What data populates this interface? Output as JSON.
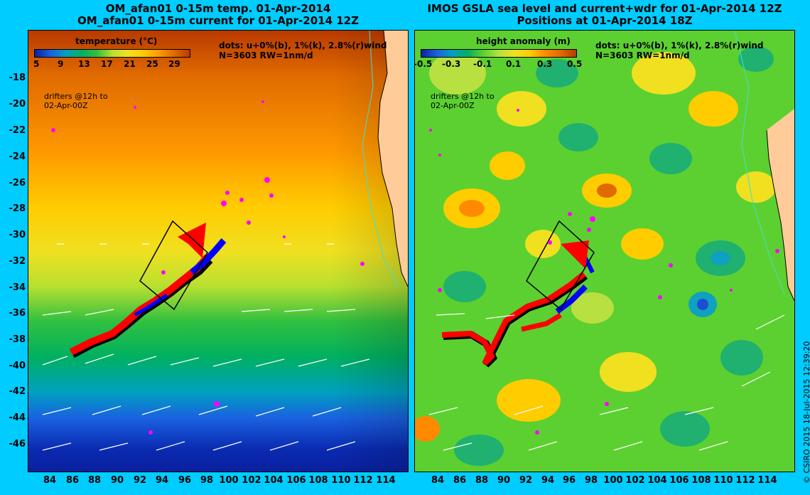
{
  "left_panel": {
    "title_line1": "OM_afan01 0-15m temp. 01-Apr-2014",
    "title_line2": "OM_afan01 0-15m current for 01-Apr-2014 12Z",
    "colorbar_label": "temperature (°C)",
    "colorbar_ticks": [
      "5",
      "9",
      "13",
      "17",
      "21",
      "25",
      "29"
    ],
    "dots_line1": "dots: u+0%(b), 1%(k), 2.8%(r)wind",
    "dots_line2": "N=3603 RW=1nm/d",
    "drifters_line1": "drifters @12h to",
    "drifters_line2": "02-Apr-00Z"
  },
  "right_panel": {
    "title_line1": "IMOS GSLA sea level and current+wdr for 01-Apr-2014 12Z",
    "title_line2": "Positions at 01-Apr-2014 18Z",
    "colorbar_label": "height anomaly  (m)",
    "colorbar_ticks": [
      "-0.5",
      "-0.3",
      "-0.1",
      "0.1",
      "0.3",
      "0.5"
    ],
    "dots_line1": "dots: u+0%(b), 1%(k), 2.8%(r)wind",
    "dots_line2": "N=3603 RW=1nm/d",
    "drifters_line1": "drifters @12h to",
    "drifters_line2": "02-Apr-00Z"
  },
  "latitude_ticks": [
    "-18",
    "-20",
    "-22",
    "-24",
    "-26",
    "-28",
    "-30",
    "-32",
    "-34",
    "-36",
    "-38",
    "-40",
    "-42",
    "-44",
    "-46"
  ],
  "longitude_ticks": [
    "84",
    "86",
    "88",
    "90",
    "92",
    "94",
    "96",
    "98",
    "100",
    "102",
    "104",
    "106",
    "108",
    "110",
    "112",
    "114"
  ],
  "credit": "© CSIRO 2015   18-Jul-2015 12:39:20",
  "colors": {
    "background": "#00ccff",
    "drift_red": "#ff0000",
    "drift_blue": "#0000ff",
    "drift_black": "#000000",
    "magenta": "#ff00ff",
    "land": "#ffcc99"
  }
}
